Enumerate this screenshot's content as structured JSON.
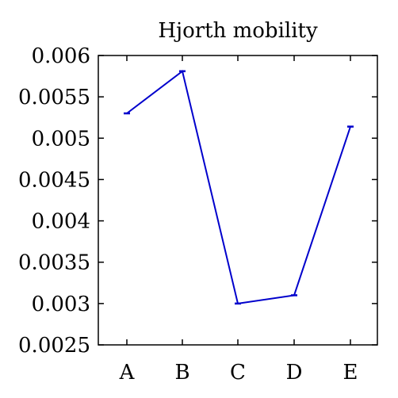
{
  "chart_data": {
    "type": "line",
    "title": "Hjorth mobility",
    "xlabel": "",
    "ylabel": "",
    "categories": [
      "A",
      "B",
      "C",
      "D",
      "E"
    ],
    "series": [
      {
        "values": [
          0.0053,
          0.00581,
          0.003,
          0.0031,
          0.00514
        ],
        "color": "#0000cc",
        "error_bars": true
      }
    ],
    "ylim": [
      0.0025,
      0.006
    ],
    "yticks": [
      "0.0025",
      "0.003",
      "0.0035",
      "0.004",
      "0.0045",
      "0.005",
      "0.0055",
      "0.006"
    ],
    "ytick_values": [
      0.0025,
      0.003,
      0.0035,
      0.004,
      0.0045,
      0.005,
      0.0055,
      0.006
    ],
    "grid": false,
    "legend": "none"
  }
}
